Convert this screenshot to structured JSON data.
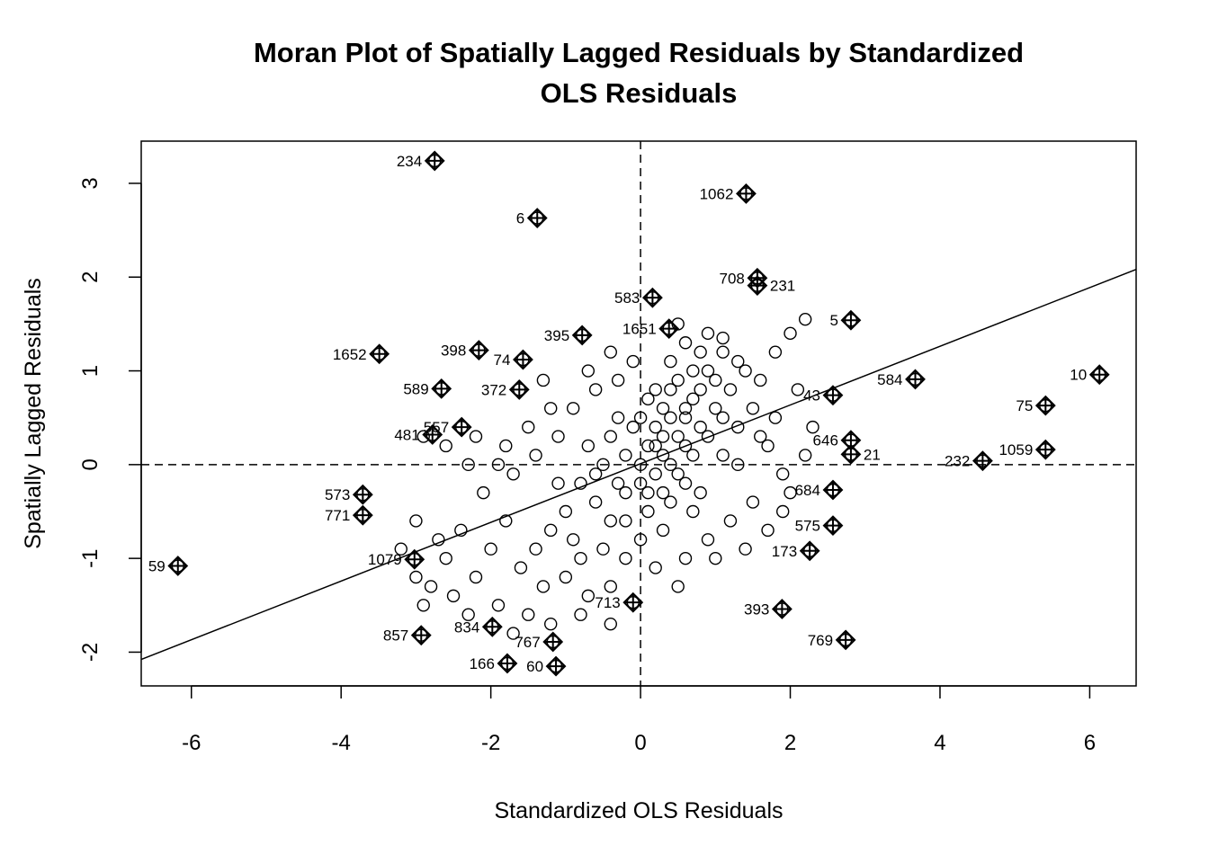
{
  "chart_data": {
    "type": "scatter",
    "title": [
      "Moran Plot of Spatially Lagged Residuals by Standardized",
      "OLS Residuals"
    ],
    "xlabel": "Standardized OLS Residuals",
    "ylabel": "Spatially Lagged Residuals",
    "xlim": [
      -6.67,
      6.62
    ],
    "ylim": [
      -2.36,
      3.45
    ],
    "xticks": [
      -6,
      -4,
      -2,
      0,
      2,
      4,
      6
    ],
    "yticks": [
      -2,
      -1,
      0,
      1,
      2,
      3
    ],
    "reference_lines": {
      "x": 0,
      "y": 0,
      "style": "dashed"
    },
    "regression_line": {
      "slope": 0.313,
      "intercept": 0.01
    },
    "grid": false,
    "influential_points": [
      {
        "id": "234",
        "x": -2.75,
        "y": 3.24
      },
      {
        "id": "6",
        "x": -1.38,
        "y": 2.63
      },
      {
        "id": "1062",
        "x": 1.41,
        "y": 2.89
      },
      {
        "id": "708",
        "x": 1.56,
        "y": 1.99
      },
      {
        "id": "231",
        "x": 1.56,
        "y": 1.91
      },
      {
        "id": "583",
        "x": 0.16,
        "y": 1.78
      },
      {
        "id": "5",
        "x": 2.81,
        "y": 1.54
      },
      {
        "id": "1651",
        "x": 0.38,
        "y": 1.45
      },
      {
        "id": "1652",
        "x": -3.49,
        "y": 1.18
      },
      {
        "id": "398",
        "x": -2.16,
        "y": 1.22
      },
      {
        "id": "395",
        "x": -0.78,
        "y": 1.38
      },
      {
        "id": "74",
        "x": -1.57,
        "y": 1.12
      },
      {
        "id": "372",
        "x": -1.62,
        "y": 0.8
      },
      {
        "id": "589",
        "x": -2.66,
        "y": 0.81
      },
      {
        "id": "10",
        "x": 6.13,
        "y": 0.96
      },
      {
        "id": "584",
        "x": 3.67,
        "y": 0.91
      },
      {
        "id": "75",
        "x": 5.41,
        "y": 0.63
      },
      {
        "id": "43",
        "x": 2.57,
        "y": 0.74
      },
      {
        "id": "1059",
        "x": 5.41,
        "y": 0.16
      },
      {
        "id": "232",
        "x": 4.57,
        "y": 0.04
      },
      {
        "id": "481",
        "x": -2.78,
        "y": 0.32
      },
      {
        "id": "557",
        "x": -2.39,
        "y": 0.4
      },
      {
        "id": "646",
        "x": 2.81,
        "y": 0.26
      },
      {
        "id": "21",
        "x": 2.81,
        "y": 0.11
      },
      {
        "id": "684",
        "x": 2.57,
        "y": -0.27
      },
      {
        "id": "575",
        "x": 2.57,
        "y": -0.65
      },
      {
        "id": "173",
        "x": 2.26,
        "y": -0.92
      },
      {
        "id": "393",
        "x": 1.89,
        "y": -1.54
      },
      {
        "id": "769",
        "x": 2.74,
        "y": -1.87
      },
      {
        "id": "573",
        "x": -3.71,
        "y": -0.32
      },
      {
        "id": "771",
        "x": -3.71,
        "y": -0.54
      },
      {
        "id": "59",
        "x": -6.18,
        "y": -1.08
      },
      {
        "id": "1079",
        "x": -3.02,
        "y": -1.01
      },
      {
        "id": "857",
        "x": -2.93,
        "y": -1.82
      },
      {
        "id": "166",
        "x": -1.78,
        "y": -2.12
      },
      {
        "id": "60",
        "x": -1.13,
        "y": -2.15
      },
      {
        "id": "767",
        "x": -1.17,
        "y": -1.89
      },
      {
        "id": "713",
        "x": -0.1,
        "y": -1.47
      },
      {
        "id": "834",
        "x": -1.98,
        "y": -1.73
      }
    ],
    "points": [
      [
        0.1,
        0.2
      ],
      [
        0.3,
        0.1
      ],
      [
        0.5,
        0.3
      ],
      [
        0.2,
        -0.1
      ],
      [
        0.4,
        0.5
      ],
      [
        0.6,
        0.2
      ],
      [
        0.8,
        0.4
      ],
      [
        0.0,
        0.0
      ],
      [
        -0.2,
        0.1
      ],
      [
        0.7,
        0.7
      ],
      [
        1.0,
        0.6
      ],
      [
        1.2,
        0.8
      ],
      [
        0.9,
        1.0
      ],
      [
        0.3,
        0.6
      ],
      [
        -0.1,
        0.4
      ],
      [
        0.2,
        0.8
      ],
      [
        0.5,
        0.9
      ],
      [
        0.6,
        -0.2
      ],
      [
        0.4,
        -0.4
      ],
      [
        0.1,
        -0.3
      ],
      [
        -0.3,
        -0.2
      ],
      [
        -0.5,
        0.0
      ],
      [
        -0.4,
        0.3
      ],
      [
        -0.6,
        -0.4
      ],
      [
        -0.8,
        -0.2
      ],
      [
        -1.0,
        -0.5
      ],
      [
        -0.7,
        0.2
      ],
      [
        -0.2,
        -0.6
      ],
      [
        0.0,
        -0.8
      ],
      [
        0.3,
        -0.7
      ],
      [
        0.8,
        -0.3
      ],
      [
        1.1,
        0.1
      ],
      [
        1.3,
        0.4
      ],
      [
        1.5,
        0.6
      ],
      [
        1.4,
        1.0
      ],
      [
        1.1,
        1.2
      ],
      [
        0.8,
        1.2
      ],
      [
        0.6,
        1.3
      ],
      [
        1.6,
        0.9
      ],
      [
        1.8,
        0.5
      ],
      [
        1.7,
        0.2
      ],
      [
        1.9,
        -0.1
      ],
      [
        1.5,
        -0.4
      ],
      [
        1.2,
        -0.6
      ],
      [
        0.9,
        -0.8
      ],
      [
        0.6,
        -1.0
      ],
      [
        0.2,
        -1.1
      ],
      [
        -0.2,
        -1.0
      ],
      [
        -0.5,
        -0.9
      ],
      [
        -0.9,
        -0.8
      ],
      [
        -1.2,
        -0.7
      ],
      [
        -1.4,
        -0.9
      ],
      [
        -1.6,
        -1.1
      ],
      [
        -1.3,
        -1.3
      ],
      [
        -1.0,
        -1.2
      ],
      [
        -0.7,
        -1.4
      ],
      [
        -0.4,
        -1.3
      ],
      [
        -1.8,
        -0.6
      ],
      [
        -2.0,
        -0.9
      ],
      [
        -2.2,
        -1.2
      ],
      [
        -1.9,
        -1.5
      ],
      [
        -1.5,
        -1.6
      ],
      [
        -2.4,
        -0.7
      ],
      [
        -2.6,
        -1.0
      ],
      [
        -2.8,
        -1.3
      ],
      [
        -2.5,
        -1.4
      ],
      [
        -2.1,
        -0.3
      ],
      [
        -1.7,
        -0.1
      ],
      [
        -1.4,
        0.1
      ],
      [
        -1.1,
        0.3
      ],
      [
        -0.9,
        0.6
      ],
      [
        -0.6,
        0.8
      ],
      [
        -0.3,
        0.9
      ],
      [
        -0.1,
        1.1
      ],
      [
        -1.2,
        0.6
      ],
      [
        -1.5,
        0.4
      ],
      [
        -1.8,
        0.2
      ],
      [
        -2.3,
        0.0
      ],
      [
        0.4,
        1.1
      ],
      [
        0.7,
        1.0
      ],
      [
        1.0,
        0.9
      ],
      [
        1.3,
        1.1
      ],
      [
        2.0,
        1.4
      ],
      [
        2.2,
        1.55
      ],
      [
        1.8,
        1.2
      ],
      [
        2.1,
        0.8
      ],
      [
        2.3,
        0.4
      ],
      [
        2.2,
        0.1
      ],
      [
        2.0,
        -0.3
      ],
      [
        1.7,
        -0.7
      ],
      [
        1.9,
        -0.5
      ],
      [
        1.4,
        -0.9
      ],
      [
        1.0,
        -1.0
      ],
      [
        0.5,
        -1.3
      ],
      [
        0.1,
        -0.5
      ],
      [
        0.2,
        0.4
      ],
      [
        0.4,
        0.0
      ],
      [
        0.6,
        0.5
      ],
      [
        0.3,
        0.3
      ],
      [
        0.5,
        -0.1
      ],
      [
        0.7,
        0.1
      ],
      [
        0.9,
        0.3
      ],
      [
        0.2,
        0.2
      ],
      [
        0.0,
        0.5
      ],
      [
        -0.2,
        -0.3
      ],
      [
        0.1,
        0.7
      ],
      [
        0.8,
        0.8
      ],
      [
        1.1,
        0.5
      ],
      [
        0.4,
        0.8
      ],
      [
        0.6,
        0.6
      ],
      [
        -0.4,
        -0.6
      ],
      [
        -0.8,
        -1.0
      ],
      [
        -0.3,
        0.5
      ],
      [
        0.0,
        -0.2
      ],
      [
        0.3,
        -0.3
      ],
      [
        0.7,
        -0.5
      ],
      [
        1.3,
        0.0
      ],
      [
        1.6,
        0.3
      ],
      [
        -1.1,
        -0.2
      ],
      [
        -0.6,
        -0.1
      ],
      [
        -2.7,
        -0.8
      ],
      [
        -3.0,
        -0.6
      ],
      [
        -3.2,
        -0.9
      ],
      [
        -3.0,
        -1.2
      ],
      [
        -2.9,
        -1.5
      ],
      [
        -2.3,
        -1.6
      ],
      [
        -1.7,
        -1.8
      ],
      [
        -1.2,
        -1.7
      ],
      [
        -0.8,
        -1.6
      ],
      [
        -0.4,
        -1.7
      ],
      [
        -1.3,
        0.9
      ],
      [
        -0.7,
        1.0
      ],
      [
        -0.4,
        1.2
      ],
      [
        0.9,
        1.4
      ],
      [
        1.1,
        1.35
      ],
      [
        0.5,
        1.5
      ],
      [
        -2.9,
        0.3
      ],
      [
        -2.6,
        0.2
      ],
      [
        -2.2,
        0.3
      ],
      [
        -1.9,
        0.0
      ]
    ]
  }
}
